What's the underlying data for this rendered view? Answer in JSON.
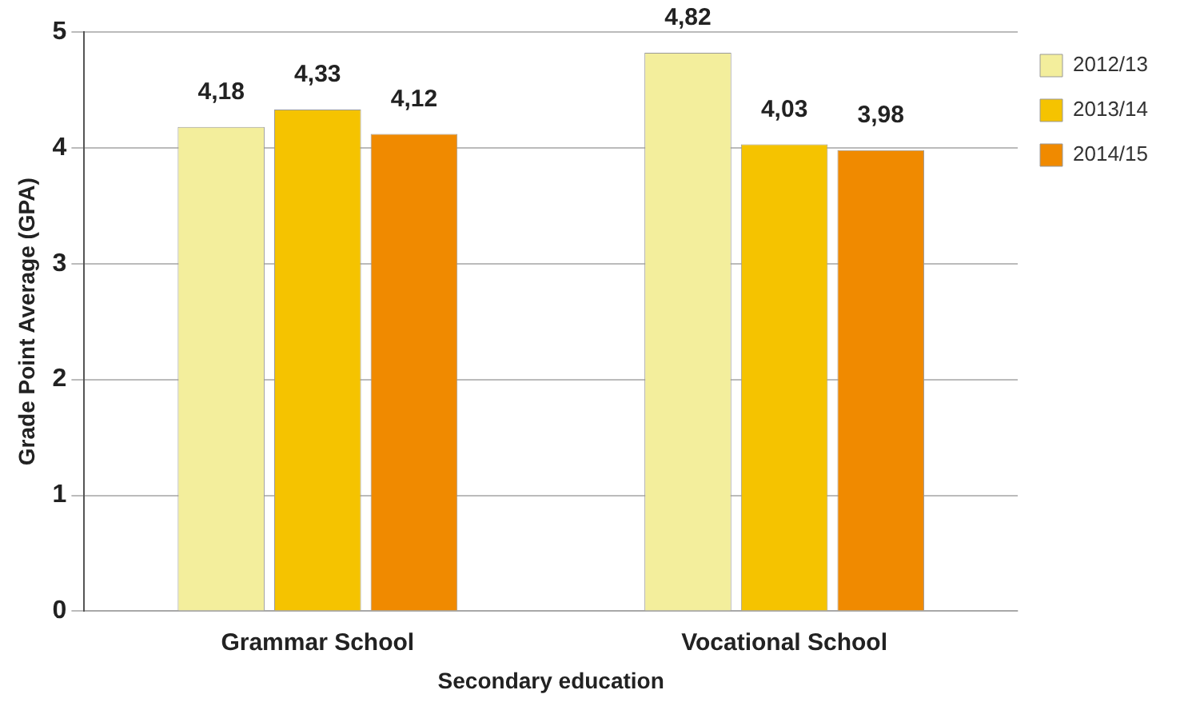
{
  "chart_data": {
    "type": "bar",
    "xlabel": "Secondary education",
    "ylabel": "Grade Point Average (GPA)",
    "categories": [
      "Grammar School",
      "Vocational School"
    ],
    "series": [
      {
        "name": "2012/13",
        "color": "#f3ee9c",
        "values": [
          4.18,
          4.82
        ],
        "value_labels": [
          "4,18",
          "4,82"
        ]
      },
      {
        "name": "2013/14",
        "color": "#f5c300",
        "values": [
          4.33,
          4.03
        ],
        "value_labels": [
          "4,33",
          "4,03"
        ]
      },
      {
        "name": "2014/15",
        "color": "#f08a00",
        "values": [
          4.12,
          3.98
        ],
        "value_labels": [
          "4,12",
          "3,98"
        ]
      }
    ],
    "ylim": [
      0,
      5
    ],
    "yticks": [
      0,
      1,
      2,
      3,
      4,
      5
    ],
    "grid": "y",
    "legend": "top right"
  }
}
